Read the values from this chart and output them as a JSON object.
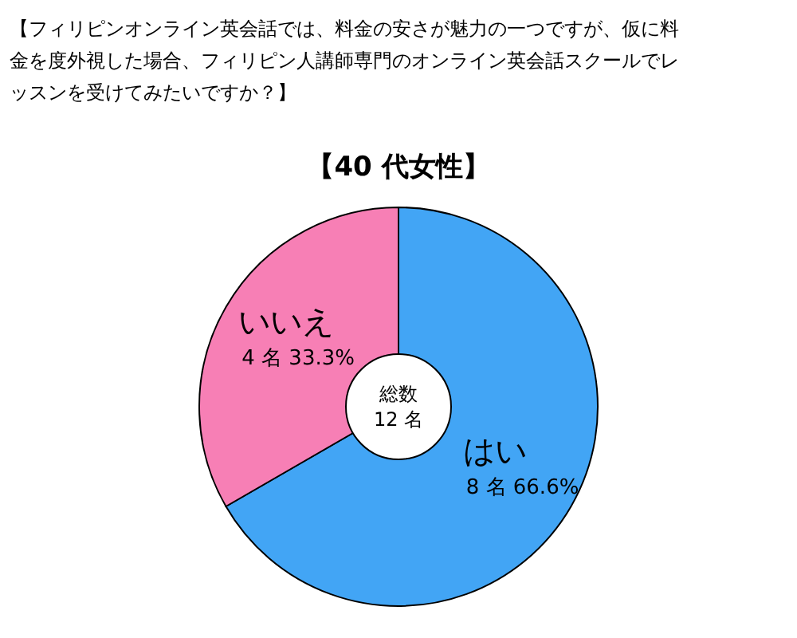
{
  "chart_data": {
    "type": "donut",
    "title": "【フィリピンオンライン英会話では、料金の安さが魅力の一つですが、仮に料金を度外視した場合、フィリピン人講師専門のオンライン英会話スクールでレッスンを受けてみたいですか？】",
    "subtitle": "【40 代女性】",
    "categories": [
      "はい",
      "いいえ"
    ],
    "values": [
      8,
      4
    ],
    "value_labels": [
      "8 名 66.6%",
      "4 名 33.3%"
    ],
    "colors": [
      "#42a5f5",
      "#f77fb5"
    ],
    "annotations": [
      "総数\n12 名"
    ]
  }
}
